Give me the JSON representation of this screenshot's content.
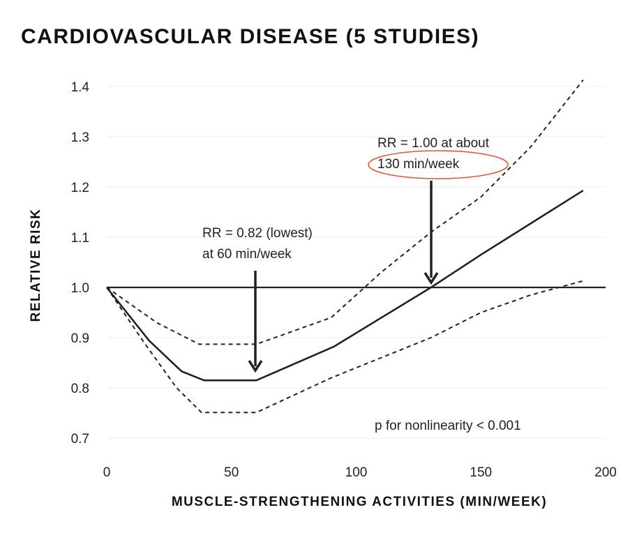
{
  "chart_data": {
    "type": "line",
    "title": "CARDIOVASCULAR DISEASE (5 STUDIES)",
    "xlabel": "MUSCLE-STRENGTHENING ACTIVITIES (MIN/WEEK)",
    "ylabel": "RELATIVE RISK",
    "xlim": [
      0,
      200
    ],
    "ylim": [
      0.7,
      1.4
    ],
    "xticks": [
      "0",
      "50",
      "100",
      "150",
      "200"
    ],
    "yticks": [
      "0.7",
      "0.8",
      "0.9",
      "1.0",
      "1.1",
      "1.2",
      "1.3",
      "1.4"
    ],
    "grid": "horizontal",
    "reference_line": 1.0,
    "series": [
      {
        "style": "solid",
        "x": [
          0,
          17,
          30,
          39,
          60,
          91,
          130,
          150,
          191
        ],
        "y": [
          1.0,
          0.894,
          0.833,
          0.815,
          0.815,
          0.882,
          1.0,
          1.065,
          1.193
        ]
      },
      {
        "style": "dashed",
        "x": [
          0,
          20,
          37,
          60,
          90,
          110,
          130,
          150,
          170,
          191
        ],
        "y": [
          1.0,
          0.93,
          0.887,
          0.887,
          0.94,
          1.03,
          1.11,
          1.18,
          1.28,
          1.413
        ]
      },
      {
        "style": "dashed",
        "x": [
          0,
          15,
          28,
          38,
          60,
          90,
          130,
          150,
          170,
          191
        ],
        "y": [
          1.0,
          0.89,
          0.8,
          0.751,
          0.751,
          0.82,
          0.9,
          0.95,
          0.985,
          1.013
        ]
      }
    ],
    "annotations": [
      {
        "lines": [
          "RR = 0.82 (lowest)",
          "at 60 min/week"
        ],
        "x": 60,
        "y": 0.815
      },
      {
        "lines": [
          "RR = 1.00 at about",
          "130 min/week"
        ],
        "x": 130,
        "y": 1.0,
        "highlight": "130 min/week",
        "highlight_color": "#e0573a"
      },
      {
        "lines": [
          "p for nonlinearity < 0.001"
        ]
      }
    ]
  }
}
